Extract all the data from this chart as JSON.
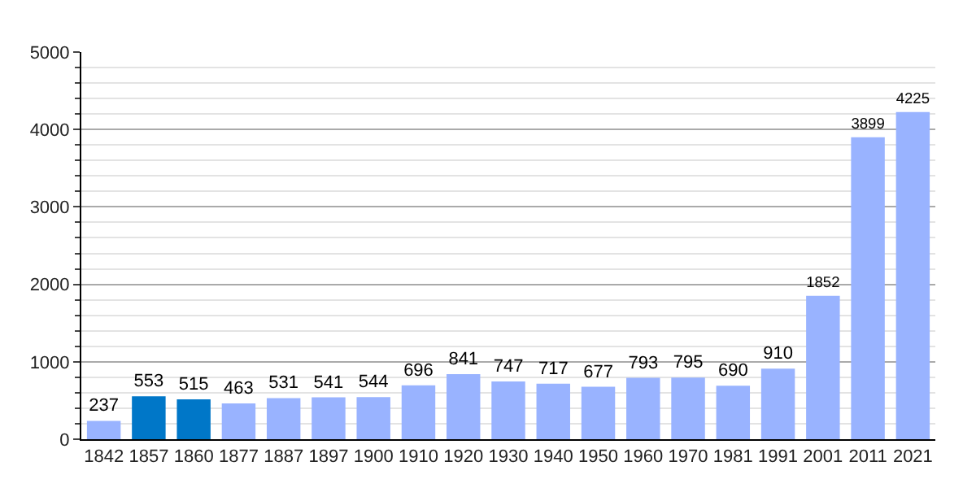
{
  "chart_data": {
    "type": "bar",
    "categories": [
      "1842",
      "1857",
      "1860",
      "1877",
      "1887",
      "1897",
      "1900",
      "1910",
      "1920",
      "1930",
      "1940",
      "1950",
      "1960",
      "1970",
      "1981",
      "1991",
      "2001",
      "2011",
      "2021"
    ],
    "values": [
      237,
      553,
      515,
      463,
      531,
      541,
      544,
      696,
      841,
      747,
      717,
      677,
      793,
      795,
      690,
      910,
      1852,
      3899,
      4225
    ],
    "colors": [
      "#99b3ff",
      "#0077c8",
      "#0077c8",
      "#99b3ff",
      "#99b3ff",
      "#99b3ff",
      "#99b3ff",
      "#99b3ff",
      "#99b3ff",
      "#99b3ff",
      "#99b3ff",
      "#99b3ff",
      "#99b3ff",
      "#99b3ff",
      "#99b3ff",
      "#99b3ff",
      "#99b3ff",
      "#99b3ff",
      "#99b3ff"
    ],
    "ylim": [
      0,
      5000
    ],
    "yticks": [
      0,
      {
        "value": 200,
        "label": null
      },
      {
        "value": 400,
        "label": null
      },
      {
        "value": 600,
        "label": null
      },
      {
        "value": 800,
        "label": null
      },
      1000,
      {
        "value": 1200,
        "label": null
      },
      {
        "value": 1400,
        "label": null
      },
      {
        "value": 1600,
        "label": null
      },
      {
        "value": 1800,
        "label": null
      },
      2000,
      {
        "value": 2200,
        "label": null
      },
      {
        "value": 2400,
        "label": null
      },
      {
        "value": 2600,
        "label": null
      },
      {
        "value": 2800,
        "label": null
      },
      3000,
      {
        "value": 3200,
        "label": null
      },
      {
        "value": 3400,
        "label": null
      },
      {
        "value": 3600,
        "label": null
      },
      {
        "value": 3800,
        "label": null
      },
      4000,
      {
        "value": 4200,
        "label": null
      },
      {
        "value": 4400,
        "label": null
      },
      {
        "value": 4600,
        "label": null
      },
      {
        "value": 4800,
        "label": null
      },
      5000
    ],
    "grid": "y",
    "data_labels": true,
    "legend": false
  }
}
